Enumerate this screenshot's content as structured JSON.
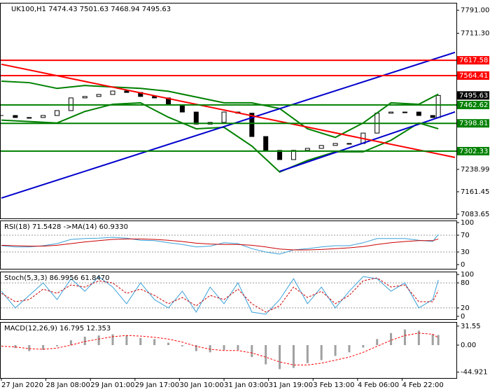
{
  "chart_data": [
    {
      "type": "candlestick",
      "title": "UK100,H1  7474.43 7501.63 7468.94 7495.63",
      "x": [
        0,
        5,
        10,
        15,
        20,
        25,
        30,
        35,
        40,
        45,
        50,
        55,
        60,
        65,
        70,
        75,
        80,
        85,
        90,
        95,
        100,
        105,
        110,
        115,
        120,
        125,
        130,
        135,
        140,
        145,
        150,
        155,
        157
      ],
      "values": [
        7426,
        7419,
        7419,
        7426,
        7443,
        7487,
        7492,
        7499,
        7511,
        7506,
        7492,
        7487,
        7463,
        7438,
        7396,
        7402,
        7438,
        7434,
        7353,
        7305,
        7273,
        7305,
        7312,
        7322,
        7329,
        7329,
        7365,
        7434,
        7438,
        7438,
        7426,
        7419,
        7495.63
      ],
      "color": "#000000",
      "xlim": [
        0,
        163
      ],
      "xticks": [
        {
          "value": 0,
          "label": "27 Jan 2020"
        },
        {
          "value": 16,
          "label": "28 Jan 08:00"
        },
        {
          "value": 32,
          "label": "29 Jan 01:00"
        },
        {
          "value": 48,
          "label": "29 Jan 17:00"
        },
        {
          "value": 64,
          "label": "30 Jan 10:00"
        },
        {
          "value": 80,
          "label": "31 Jan 03:00"
        },
        {
          "value": 96,
          "label": "31 Jan 19:00"
        },
        {
          "value": 112,
          "label": "3 Feb 13:00"
        },
        {
          "value": 128,
          "label": "4 Feb 06:00"
        },
        {
          "value": 144,
          "label": "4 Feb 22:00"
        }
      ],
      "ylim": [
        7069,
        7817
      ],
      "yticks": [
        {
          "value": 7791,
          "label": "7791.00"
        },
        {
          "value": 7711.3,
          "label": "7711.30"
        },
        {
          "value": 7238.99,
          "label": "7238.99"
        },
        {
          "value": 7161.45,
          "label": "7161.45"
        },
        {
          "value": 7083.65,
          "label": "7083.65"
        }
      ],
      "grid": false,
      "levels": [
        {
          "value": 7617.58,
          "color": "#ff0000",
          "line": true
        },
        {
          "value": 7564.41,
          "color": "#ff0000",
          "line": true
        },
        {
          "value": 7495.63,
          "color": "#000000",
          "line": false
        },
        {
          "value": 7462.62,
          "color": "#008000",
          "line": true
        },
        {
          "value": 7398.81,
          "color": "#008000",
          "line": true
        },
        {
          "value": 7302.33,
          "color": "#008000",
          "line": true
        }
      ],
      "series": [
        {
          "color": "#008000",
          "x": [
            0,
            10,
            20,
            30,
            40,
            50,
            60,
            70,
            80,
            90,
            100,
            110,
            120,
            130,
            140,
            150,
            157
          ],
          "values": [
            7545,
            7540,
            7520,
            7530,
            7525,
            7520,
            7510,
            7490,
            7470,
            7470,
            7450,
            7380,
            7350,
            7400,
            7470,
            7465,
            7500
          ]
        },
        {
          "color": "#008000",
          "x": [
            0,
            10,
            20,
            30,
            40,
            50,
            60,
            70,
            80,
            90,
            100,
            110,
            120,
            130,
            140,
            150,
            157
          ],
          "values": [
            7410,
            7405,
            7400,
            7440,
            7465,
            7470,
            7420,
            7380,
            7385,
            7320,
            7230,
            7270,
            7300,
            7300,
            7340,
            7400,
            7380
          ]
        },
        {
          "color": "#0000cd",
          "x": [
            0,
            163
          ],
          "values": [
            7139.5,
            7645
          ]
        },
        {
          "color": "#0000cd",
          "x": [
            100,
            163
          ],
          "values": [
            7232,
            7438.5
          ]
        },
        {
          "color": "#ff0000",
          "x": [
            0,
            163
          ],
          "values": [
            7603.7,
            7280.5
          ]
        }
      ]
    },
    {
      "type": "line",
      "title": "RSI(18) 71.5428 ->MA(14) 60.9330",
      "ylim": [
        -10,
        105
      ],
      "yticks": [
        100,
        70,
        30,
        0
      ],
      "grid": true,
      "series": [
        {
          "color": "#3aa0d8",
          "dash": false,
          "values": [
            45,
            42,
            42,
            45,
            50,
            60,
            62,
            63,
            65,
            63,
            58,
            57,
            52,
            48,
            42,
            44,
            52,
            50,
            38,
            30,
            25,
            35,
            38,
            42,
            45,
            45,
            52,
            62,
            62,
            62,
            58,
            55,
            71.5428
          ]
        },
        {
          "color": "#cc0000",
          "dash": false,
          "values": [
            46,
            45,
            44,
            44,
            46,
            50,
            54,
            57,
            60,
            61,
            61,
            60,
            58,
            55,
            51,
            49,
            48,
            48,
            46,
            42,
            37,
            35,
            35,
            36,
            38,
            40,
            43,
            48,
            52,
            55,
            57,
            57,
            60.933
          ]
        }
      ]
    },
    {
      "type": "line",
      "title": "Stoch(5,3,3) 86.9956 61.8470",
      "ylim": [
        -7,
        107
      ],
      "yticks": [
        100,
        80,
        20,
        0
      ],
      "grid": true,
      "series": [
        {
          "color": "#3aa0d8",
          "dash": false,
          "values": [
            60,
            20,
            50,
            80,
            40,
            90,
            60,
            95,
            70,
            30,
            80,
            40,
            20,
            60,
            10,
            70,
            30,
            80,
            10,
            5,
            40,
            90,
            30,
            70,
            20,
            60,
            95,
            90,
            60,
            80,
            20,
            40,
            86.9956
          ]
        },
        {
          "color": "#cc0000",
          "dash": true,
          "values": [
            55,
            35,
            40,
            65,
            55,
            75,
            70,
            85,
            80,
            55,
            65,
            50,
            30,
            45,
            25,
            50,
            40,
            65,
            30,
            10,
            25,
            70,
            45,
            60,
            30,
            50,
            85,
            92,
            70,
            75,
            35,
            35,
            61.847
          ]
        }
      ]
    },
    {
      "type": "bar",
      "title": "MACD(12,26,9) 16.795 12.353",
      "color": "#a0a0a0",
      "values": [
        0,
        -5,
        -10,
        -8,
        -2,
        8,
        14,
        16,
        18,
        16,
        12,
        10,
        4,
        -2,
        -10,
        -12,
        -8,
        -8,
        -20,
        -32,
        -40,
        -38,
        -30,
        -25,
        -18,
        -12,
        -4,
        10,
        20,
        26,
        24,
        18,
        16.795
      ],
      "ylim": [
        -54.7,
        38.4
      ],
      "yticks": [
        31.55,
        {
          "value": 0,
          "label": "0.00"
        },
        -44.921
      ],
      "grid": false,
      "series": [
        {
          "color": "#ff0000",
          "dash": true,
          "values": [
            -2,
            -3,
            -6,
            -7,
            -5,
            0,
            6,
            10,
            14,
            16,
            15,
            13,
            10,
            5,
            -2,
            -7,
            -9,
            -9,
            -13,
            -20,
            -28,
            -33,
            -33,
            -30,
            -25,
            -20,
            -12,
            -2,
            8,
            16,
            20,
            18,
            12.353
          ]
        }
      ]
    }
  ]
}
